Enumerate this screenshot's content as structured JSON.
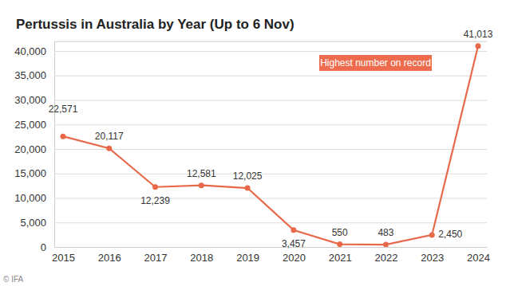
{
  "chart_data": {
    "type": "line",
    "title": "Pertussis in Australia by Year (Up to 6 Nov)",
    "categories": [
      "2015",
      "2016",
      "2017",
      "2018",
      "2019",
      "2020",
      "2021",
      "2022",
      "2023",
      "2024"
    ],
    "values": [
      22571,
      20117,
      12239,
      12581,
      12025,
      3457,
      550,
      483,
      2450,
      41013
    ],
    "value_labels": [
      "22,571",
      "20,117",
      "12,239",
      "12,581",
      "12,025",
      "3,457",
      "550",
      "483",
      "2,450",
      "41,013"
    ],
    "color": "#e8694a",
    "marker": "circle",
    "data_labels": true,
    "grid": true,
    "ylim": [
      0,
      42000
    ],
    "yticks": [
      0,
      {
        "value": 5000,
        "label": "5,000"
      },
      {
        "value": 10000,
        "label": "10,000"
      },
      {
        "value": 15000,
        "label": "15,000"
      },
      {
        "value": 20000,
        "label": "20,000"
      },
      {
        "value": 25000,
        "label": "25,000"
      },
      {
        "value": 30000,
        "label": "30,000"
      },
      {
        "value": 35000,
        "label": "35,000"
      },
      {
        "value": 40000,
        "label": "40,000"
      }
    ],
    "annotations": [
      "Highest number on record"
    ],
    "credit": "© IFA"
  }
}
